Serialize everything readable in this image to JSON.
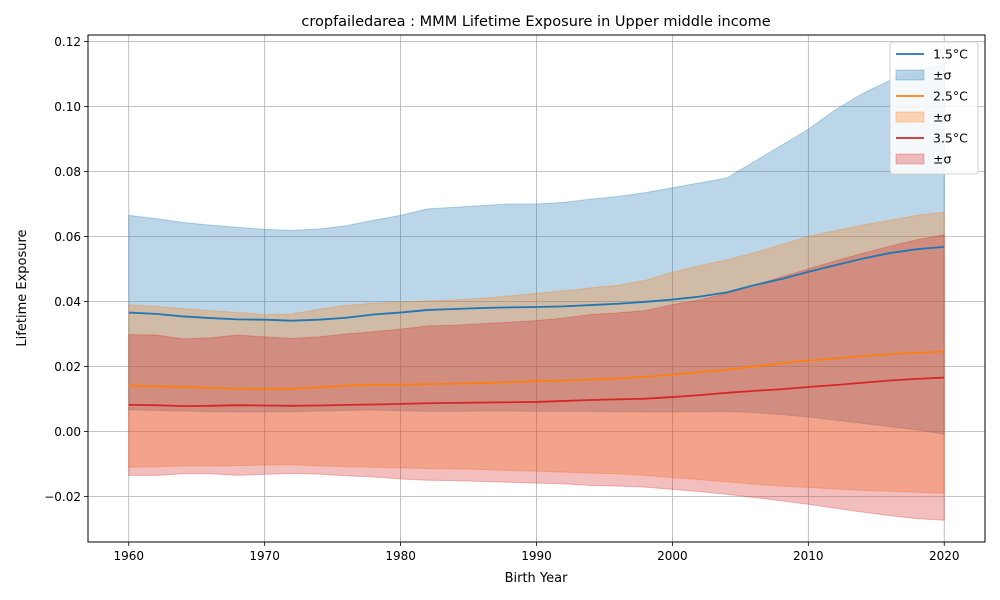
{
  "chart_data": {
    "type": "line",
    "title": "cropfailedarea : MMM Lifetime Exposure in Upper middle income",
    "xlabel": "Birth Year",
    "ylabel": "Lifetime Exposure",
    "xlim": [
      1957,
      2023
    ],
    "ylim": [
      -0.034,
      0.122
    ],
    "xticks": [
      1960,
      1970,
      1980,
      1990,
      2000,
      2010,
      2020
    ],
    "xtick_labels": [
      "1960",
      "1970",
      "1980",
      "1990",
      "2000",
      "2010",
      "2020"
    ],
    "yticks": [
      -0.02,
      0.0,
      0.02,
      0.04,
      0.06,
      0.08,
      0.1,
      0.12
    ],
    "ytick_labels": [
      "−0.02",
      "0.00",
      "0.02",
      "0.04",
      "0.06",
      "0.08",
      "0.10",
      "0.12"
    ],
    "grid": true,
    "legend_position": "top-right",
    "legend": [
      "1.5°C",
      "±σ",
      "2.5°C",
      "±σ",
      "3.5°C",
      "±σ"
    ],
    "x": [
      1960,
      1962,
      1964,
      1966,
      1968,
      1970,
      1972,
      1974,
      1976,
      1978,
      1980,
      1982,
      1984,
      1986,
      1988,
      1990,
      1992,
      1994,
      1996,
      1998,
      2000,
      2002,
      2004,
      2006,
      2008,
      2010,
      2012,
      2014,
      2016,
      2018,
      2020
    ],
    "series": [
      {
        "name": "1.5°C",
        "color": "#1f77b4",
        "values": [
          0.0366,
          0.0362,
          0.0354,
          0.0349,
          0.0345,
          0.0344,
          0.0341,
          0.0344,
          0.035,
          0.036,
          0.0366,
          0.0374,
          0.0377,
          0.038,
          0.0382,
          0.0383,
          0.0385,
          0.0389,
          0.0393,
          0.0399,
          0.0406,
          0.0415,
          0.0428,
          0.045,
          0.0469,
          0.0491,
          0.0512,
          0.0532,
          0.0549,
          0.0561,
          0.0568
        ],
        "upper": [
          0.0665,
          0.0655,
          0.0643,
          0.0635,
          0.0628,
          0.0622,
          0.0619,
          0.0623,
          0.0633,
          0.065,
          0.0665,
          0.0685,
          0.069,
          0.0695,
          0.07,
          0.07,
          0.0705,
          0.0715,
          0.0723,
          0.0735,
          0.075,
          0.0765,
          0.078,
          0.083,
          0.088,
          0.093,
          0.099,
          0.104,
          0.108,
          0.111,
          0.113
        ],
        "lower": [
          0.0067,
          0.0065,
          0.0063,
          0.0061,
          0.006,
          0.006,
          0.0061,
          0.0063,
          0.0065,
          0.0066,
          0.0064,
          0.0062,
          0.0062,
          0.0063,
          0.0063,
          0.0062,
          0.0062,
          0.0062,
          0.0061,
          0.006,
          0.006,
          0.0061,
          0.0062,
          0.0058,
          0.0052,
          0.0045,
          0.0035,
          0.0025,
          0.0015,
          0.0005,
          -0.0008
        ]
      },
      {
        "name": "2.5°C",
        "color": "#ff7f0e",
        "values": [
          0.0141,
          0.0139,
          0.0137,
          0.0134,
          0.0132,
          0.013,
          0.0131,
          0.0136,
          0.0141,
          0.0144,
          0.0144,
          0.0146,
          0.0147,
          0.0149,
          0.0152,
          0.0155,
          0.0157,
          0.016,
          0.0163,
          0.0168,
          0.0175,
          0.0183,
          0.019,
          0.02,
          0.021,
          0.0218,
          0.0225,
          0.0232,
          0.0238,
          0.0242,
          0.0246
        ],
        "upper": [
          0.039,
          0.0385,
          0.0378,
          0.0372,
          0.0366,
          0.036,
          0.0362,
          0.0376,
          0.0388,
          0.0395,
          0.0398,
          0.0402,
          0.0405,
          0.041,
          0.0417,
          0.0425,
          0.0433,
          0.0442,
          0.045,
          0.0465,
          0.049,
          0.051,
          0.0528,
          0.055,
          0.0575,
          0.06,
          0.0618,
          0.0635,
          0.065,
          0.0665,
          0.0675
        ],
        "lower": [
          -0.011,
          -0.0108,
          -0.0106,
          -0.0106,
          -0.0105,
          -0.0103,
          -0.0102,
          -0.0106,
          -0.0108,
          -0.011,
          -0.0112,
          -0.0114,
          -0.0115,
          -0.0117,
          -0.012,
          -0.0122,
          -0.0125,
          -0.0128,
          -0.013,
          -0.0135,
          -0.0142,
          -0.0148,
          -0.0155,
          -0.0162,
          -0.0168,
          -0.0172,
          -0.0177,
          -0.0181,
          -0.0184,
          -0.0187,
          -0.019
        ]
      },
      {
        "name": "3.5°C",
        "color": "#d62728",
        "values": [
          0.0082,
          0.0081,
          0.0078,
          0.0079,
          0.0081,
          0.008,
          0.0079,
          0.008,
          0.0082,
          0.0083,
          0.0085,
          0.0087,
          0.0088,
          0.0089,
          0.009,
          0.0091,
          0.0094,
          0.0097,
          0.0099,
          0.0101,
          0.0106,
          0.0112,
          0.0119,
          0.0125,
          0.013,
          0.0137,
          0.0143,
          0.015,
          0.0157,
          0.0162,
          0.0166
        ],
        "upper": [
          0.0298,
          0.0297,
          0.0285,
          0.0288,
          0.0297,
          0.0291,
          0.0286,
          0.0291,
          0.03,
          0.0307,
          0.0315,
          0.0325,
          0.0327,
          0.0332,
          0.0336,
          0.0341,
          0.0349,
          0.036,
          0.0365,
          0.0372,
          0.039,
          0.0405,
          0.0425,
          0.045,
          0.0475,
          0.05,
          0.0525,
          0.0548,
          0.057,
          0.059,
          0.0605
        ],
        "lower": [
          -0.0135,
          -0.0135,
          -0.013,
          -0.013,
          -0.0135,
          -0.0132,
          -0.0129,
          -0.0131,
          -0.0136,
          -0.014,
          -0.0146,
          -0.015,
          -0.0151,
          -0.0154,
          -0.0156,
          -0.0159,
          -0.0161,
          -0.0166,
          -0.0168,
          -0.0171,
          -0.0178,
          -0.0185,
          -0.0193,
          -0.0203,
          -0.0213,
          -0.0224,
          -0.0236,
          -0.0248,
          -0.0259,
          -0.0268,
          -0.0273
        ]
      }
    ]
  }
}
